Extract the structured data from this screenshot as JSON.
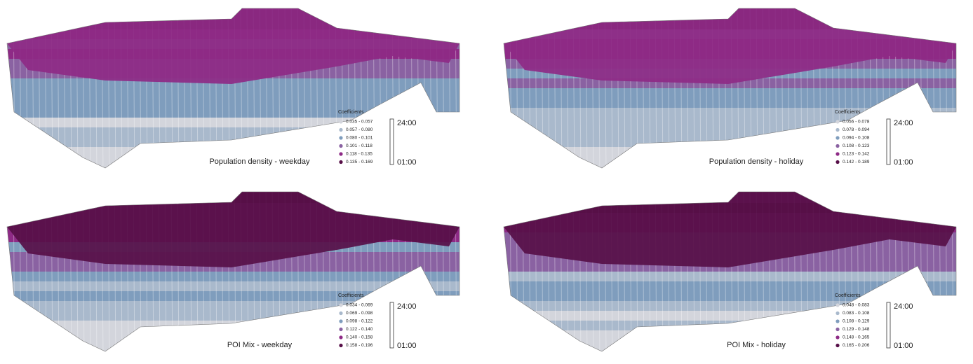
{
  "class_colors": [
    "#d3d5dc",
    "#a9b9cc",
    "#7f9dbd",
    "#8a62a2",
    "#8e2a86",
    "#570f48"
  ],
  "panels": [
    {
      "title": "Population density - weekday",
      "legend": {
        "title": "Coefficients",
        "items": [
          "0.035 - 0.057",
          "0.057 - 0.080",
          "0.080 - 0.101",
          "0.101 - 0.118",
          "0.118 - 0.135",
          "0.135 - 0.169"
        ]
      },
      "time_axis": {
        "top": "24:00",
        "bottom": "01:00"
      }
    },
    {
      "title": "Population density - holiday",
      "legend": {
        "title": "Coefficients",
        "items": [
          "0.056 - 0.078",
          "0.078 - 0.094",
          "0.094 - 0.108",
          "0.108 - 0.123",
          "0.123 - 0.142",
          "0.142 - 0.189"
        ]
      },
      "time_axis": {
        "top": "24:00",
        "bottom": "01:00"
      }
    },
    {
      "title": "POI Mix - weekday",
      "legend": {
        "title": "Coefficients",
        "items": [
          "0.034 - 0.069",
          "0.069 - 0.098",
          "0.098 - 0.122",
          "0.122 - 0.140",
          "0.140 - 0.158",
          "0.158 - 0.196"
        ]
      },
      "time_axis": {
        "top": "24:00",
        "bottom": "01:00"
      }
    },
    {
      "title": "POI Mix - holiday",
      "legend": {
        "title": "Coefficients",
        "items": [
          "0.048 - 0.083",
          "0.083 - 0.108",
          "0.108 - 0.129",
          "0.129 - 0.148",
          "0.148 - 0.165",
          "0.165 - 0.206"
        ]
      },
      "time_axis": {
        "top": "24:00",
        "bottom": "01:00"
      }
    }
  ]
}
